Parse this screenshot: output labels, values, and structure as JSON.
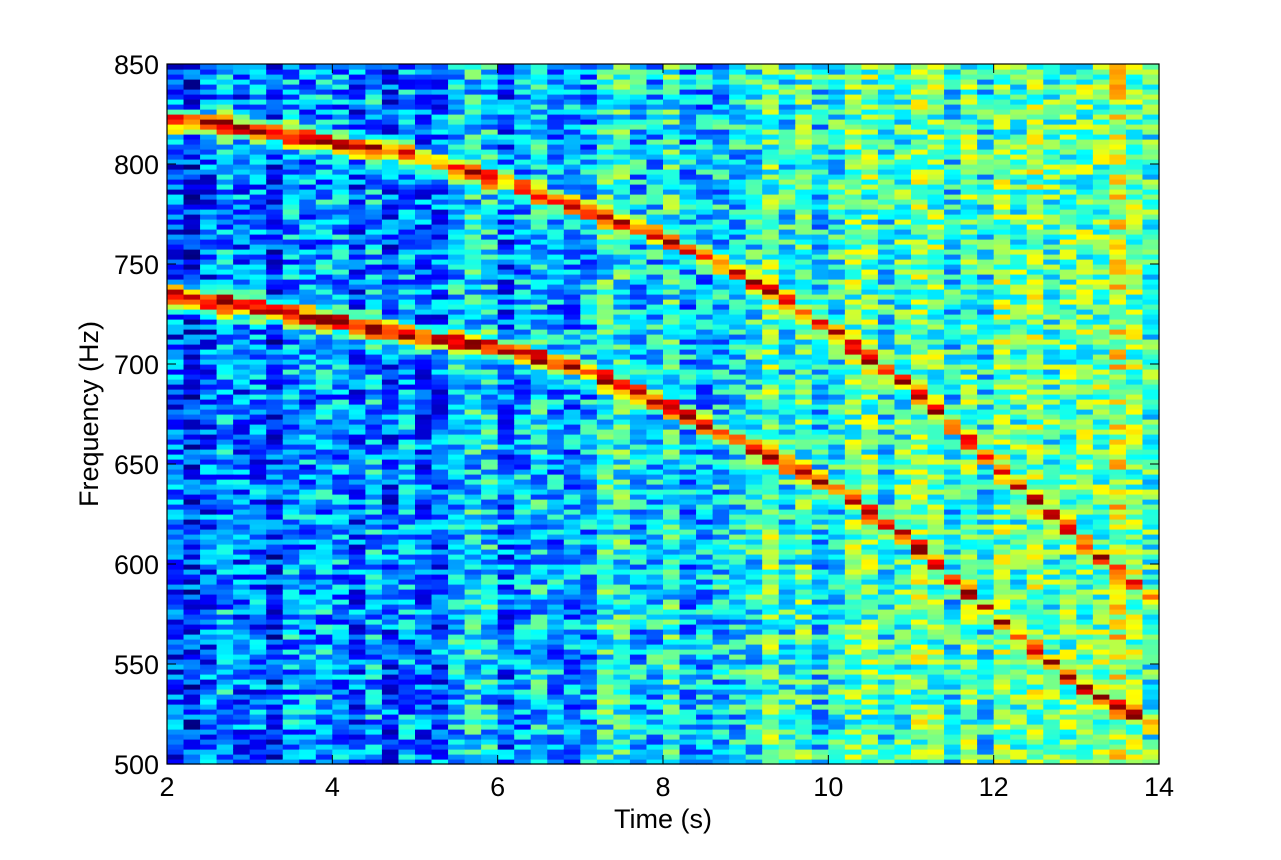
{
  "chart_data": {
    "type": "heatmap",
    "title": "",
    "xlabel": "Time (s)",
    "ylabel": "Frequency (Hz)",
    "xlim": [
      2,
      14
    ],
    "ylim": [
      500,
      850
    ],
    "x_ticks": [
      2,
      4,
      6,
      8,
      10,
      12,
      14
    ],
    "y_ticks": [
      500,
      550,
      600,
      650,
      700,
      750,
      800,
      850
    ],
    "x_tick_labels": [
      "2",
      "4",
      "6",
      "8",
      "10",
      "12",
      "14"
    ],
    "y_tick_labels": [
      "500",
      "550",
      "600",
      "650",
      "700",
      "750",
      "800",
      "850"
    ],
    "colormap": "jet",
    "grid": false,
    "time_step_s": 0.2,
    "freq_step_hz": 2.5,
    "ridges": [
      {
        "points": [
          [
            2.0,
            822
          ],
          [
            3.0,
            818
          ],
          [
            4.0,
            811
          ],
          [
            5.0,
            804
          ],
          [
            6.0,
            792
          ],
          [
            7.0,
            778
          ],
          [
            8.0,
            764
          ],
          [
            9.0,
            744
          ],
          [
            10.0,
            718
          ],
          [
            11.0,
            688
          ],
          [
            12.0,
            650
          ],
          [
            13.0,
            614
          ],
          [
            14.0,
            580
          ]
        ],
        "peak_level": 0.92
      },
      {
        "points": [
          [
            2.0,
            734
          ],
          [
            3.0,
            729
          ],
          [
            4.0,
            722
          ],
          [
            5.0,
            714
          ],
          [
            6.0,
            708
          ],
          [
            7.0,
            698
          ],
          [
            8.0,
            680
          ],
          [
            9.0,
            660
          ],
          [
            10.0,
            640
          ],
          [
            11.0,
            612
          ],
          [
            12.0,
            574
          ],
          [
            13.0,
            540
          ],
          [
            14.0,
            518
          ]
        ],
        "peak_level": 0.97
      }
    ],
    "background": {
      "base_level_at_xmin": 0.18,
      "base_level_at_xmax": 0.52
    }
  }
}
